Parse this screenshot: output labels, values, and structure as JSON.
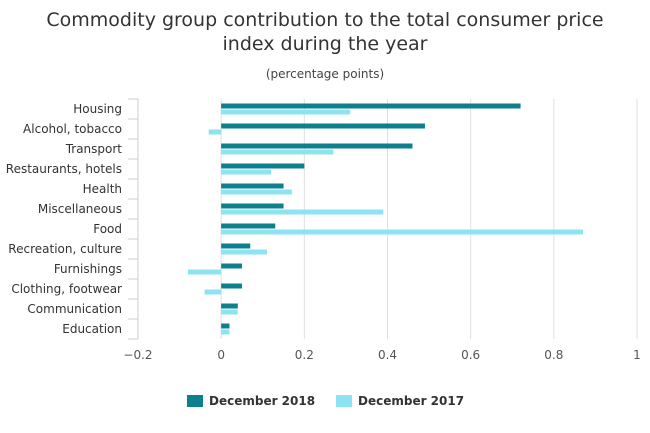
{
  "chart_data": {
    "type": "bar",
    "orientation": "horizontal",
    "title": "Commodity group contribution to the total consumer price\nindex during the year",
    "subtitle": "(percentage points)",
    "categories": [
      "Housing",
      "Alcohol, tobacco",
      "Transport",
      "Restaurants, hotels",
      "Health",
      "Miscellaneous",
      "Food",
      "Recreation, culture",
      "Furnishings",
      "Clothing, footwear",
      "Communication",
      "Education"
    ],
    "series": [
      {
        "name": "December 2018",
        "color": "#0e7f8c",
        "values": [
          0.72,
          0.49,
          0.46,
          0.2,
          0.15,
          0.15,
          0.13,
          0.07,
          0.05,
          0.05,
          0.04,
          0.02
        ]
      },
      {
        "name": "December 2017",
        "color": "#8ee3f1",
        "values": [
          0.31,
          -0.03,
          0.27,
          0.12,
          0.17,
          0.39,
          0.87,
          0.11,
          -0.08,
          -0.04,
          0.04,
          0.02
        ]
      }
    ],
    "xlim": [
      -0.2,
      1.0
    ],
    "xticks": [
      -0.2,
      0,
      0.2,
      0.4,
      0.6,
      0.8,
      1
    ],
    "xtick_labels": [
      "−0.2",
      "0",
      "0.2",
      "0.4",
      "0.6",
      "0.8",
      "1"
    ],
    "grid": true,
    "legend_position": "bottom-center"
  }
}
